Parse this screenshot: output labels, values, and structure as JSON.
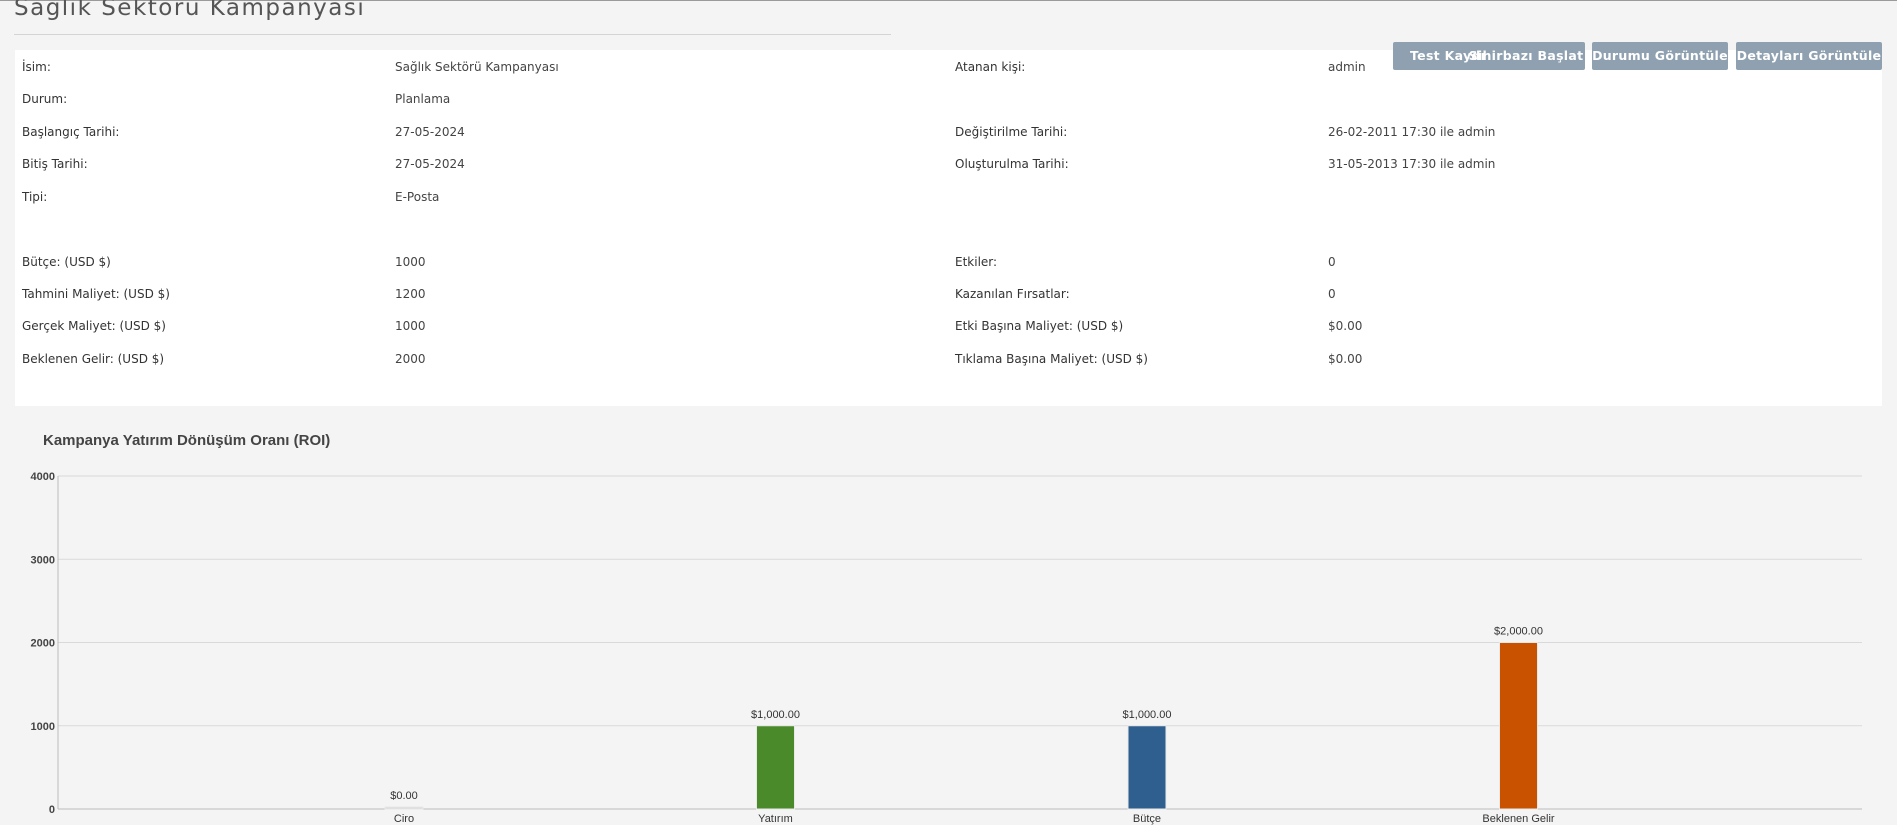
{
  "page": {
    "title": "Sağlık Sektörü Kampanyası"
  },
  "buttons": {
    "test": "Test Kaydı",
    "wizard": "Sihirbazı Başlat",
    "status": "Durumu Görüntüle",
    "details": "Detayları Görüntüle"
  },
  "details": {
    "left": [
      {
        "label": "İsim:",
        "value": "Sağlık Sektörü Kampanyası"
      },
      {
        "label": "Durum:",
        "value": "Planlama"
      },
      {
        "label": "Başlangıç Tarihi:",
        "value": "27-05-2024"
      },
      {
        "label": "Bitiş Tarihi:",
        "value": "27-05-2024"
      },
      {
        "label": "Tipi:",
        "value": "E-Posta"
      },
      {
        "label": "Bütçe: (USD $)",
        "value": "1000"
      },
      {
        "label": "Tahmini Maliyet: (USD $)",
        "value": "1200"
      },
      {
        "label": "Gerçek Maliyet: (USD $)",
        "value": "1000"
      },
      {
        "label": "Beklenen Gelir: (USD $)",
        "value": "2000"
      }
    ],
    "right": [
      {
        "label": "Atanan kişi:",
        "value": "admin"
      },
      {
        "label": "Değiştirilme Tarihi:",
        "value": "26-02-2011 17:30 ile admin"
      },
      {
        "label": "Oluşturulma Tarihi:",
        "value": "31-05-2013 17:30 ile admin"
      },
      {
        "label": "Etkiler:",
        "value": "0"
      },
      {
        "label": "Kazanılan Fırsatlar:",
        "value": "0"
      },
      {
        "label": "Etki Başına Maliyet: (USD $)",
        "value": "$0.00"
      },
      {
        "label": "Tıklama Başına Maliyet: (USD $)",
        "value": "$0.00"
      }
    ]
  },
  "chart_data": {
    "type": "bar",
    "title": "Kampanya Yatırım Dönüşüm Oranı (ROI)",
    "categories": [
      "Ciro",
      "Yatırım",
      "Bütçe",
      "Beklenen Gelir"
    ],
    "values": [
      0,
      1000,
      1000,
      2000
    ],
    "value_labels": [
      "$0.00",
      "$1,000.00",
      "$1,000.00",
      "$2,000.00"
    ],
    "colors": [
      "#d8d8d8",
      "#4a8a2a",
      "#2f5f8f",
      "#c85200"
    ],
    "yticks": [
      "0",
      "1000",
      "2000",
      "3000",
      "4000"
    ],
    "ylim": [
      0,
      4000
    ],
    "grid": true,
    "xlabel": "",
    "ylabel": ""
  }
}
